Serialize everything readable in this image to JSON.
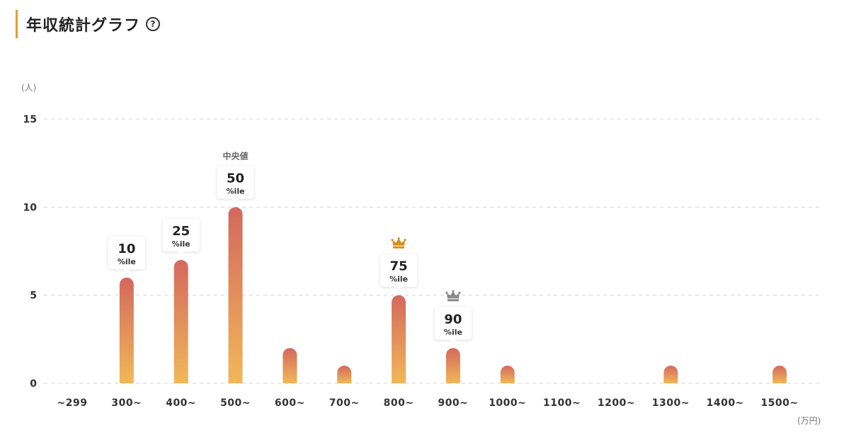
{
  "header": {
    "title": "年収統計グラフ",
    "help_icon": "question-circle-icon",
    "accent_color": "#e0a030"
  },
  "chart_data": {
    "type": "bar",
    "ylabel": "(人)",
    "xlabel": "(万円)",
    "ylim": [
      0,
      15
    ],
    "yticks": [
      0,
      5,
      10,
      15
    ],
    "grid": "dashed-horizontal",
    "categories": [
      "~299",
      "300~",
      "400~",
      "500~",
      "600~",
      "700~",
      "800~",
      "900~",
      "1000~",
      "1100~",
      "1200~",
      "1300~",
      "1400~",
      "1500~"
    ],
    "values": [
      0,
      6,
      7,
      10,
      2,
      1,
      5,
      2,
      1,
      0,
      0,
      1,
      0,
      1
    ],
    "bar_gradient": {
      "top": "#d4685e",
      "bottom": "#f0b858"
    },
    "percentile_callouts": [
      {
        "category": "300~",
        "value": "10",
        "suffix": "%ile"
      },
      {
        "category": "400~",
        "value": "25",
        "suffix": "%ile"
      },
      {
        "category": "500~",
        "value": "50",
        "suffix": "%ile",
        "note": "中央値"
      },
      {
        "category": "800~",
        "value": "75",
        "suffix": "%ile",
        "icon": "crown-gold-icon",
        "icon_color": "#d4901c"
      },
      {
        "category": "900~",
        "value": "90",
        "suffix": "%ile",
        "icon": "crown-silver-icon",
        "icon_color": "#8a8a8a"
      }
    ]
  }
}
